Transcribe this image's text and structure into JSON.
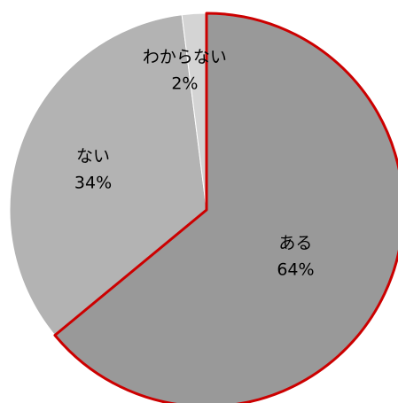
{
  "chart_data": {
    "type": "pie",
    "title": "",
    "start_angle_deg": 0,
    "direction": "clockwise",
    "slices": [
      {
        "label": "ある",
        "pct_label": "64%",
        "value": 64,
        "color": "#999999",
        "highlight": true,
        "highlight_color": "#cc0000"
      },
      {
        "label": "ない",
        "pct_label": "34%",
        "value": 34,
        "color": "#b3b3b3",
        "highlight": false
      },
      {
        "label": "わからない",
        "pct_label": "2%",
        "value": 2,
        "color": "#d4d4d4",
        "highlight": false
      }
    ],
    "legend": "none"
  }
}
